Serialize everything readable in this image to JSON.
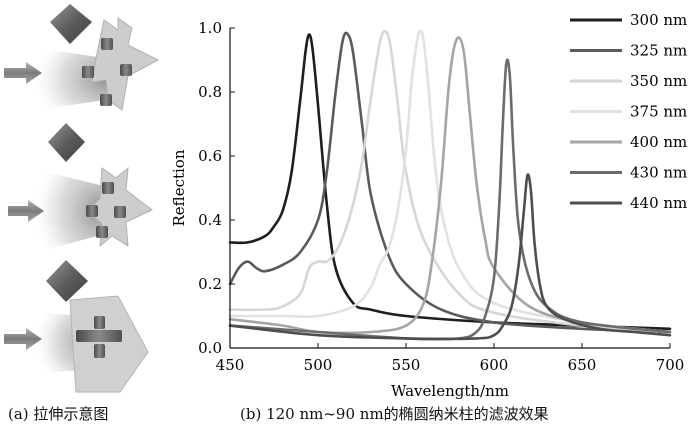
{
  "captions": {
    "a": "(a) 拉伸示意图",
    "b": "(b) 120 nm~90 nm的椭圆纳米柱的滤波效果"
  },
  "schematic": {
    "panels": [
      "top",
      "middle",
      "bottom"
    ],
    "colors": {
      "arrow": "#8a8a8a",
      "structure": "#c9c9c9",
      "pillar": "#5f5f5f",
      "diamond": "#6d6d6d",
      "beam": "#b8b8b8"
    }
  },
  "chart_data": {
    "type": "line",
    "title": "",
    "xlabel": "Wavelength/nm",
    "ylabel": "Reflection",
    "xlim": [
      450,
      700
    ],
    "ylim": [
      0,
      1.0
    ],
    "xticks": [
      450,
      500,
      550,
      600,
      650,
      700
    ],
    "yticks": [
      0.0,
      0.2,
      0.4,
      0.6,
      0.8,
      1.0
    ],
    "xtick_labels": [
      "450",
      "500",
      "550",
      "600",
      "650",
      "700"
    ],
    "ytick_labels": [
      "0.0",
      "0.2",
      "0.4",
      "0.6",
      "0.8",
      "1.0"
    ],
    "legend_position": "top-right",
    "series": [
      {
        "name": "300 nm",
        "color": "#1e1e1e",
        "x": [
          450,
          460,
          470,
          475,
          480,
          485,
          490,
          493,
          495,
          497,
          500,
          505,
          510,
          520,
          530,
          550,
          600,
          650,
          700
        ],
        "y": [
          0.33,
          0.33,
          0.35,
          0.38,
          0.43,
          0.55,
          0.78,
          0.93,
          0.98,
          0.93,
          0.76,
          0.45,
          0.25,
          0.14,
          0.12,
          0.1,
          0.08,
          0.07,
          0.06
        ]
      },
      {
        "name": "325 nm",
        "color": "#5a5a5a",
        "x": [
          450,
          455,
          460,
          465,
          470,
          480,
          490,
          500,
          505,
          510,
          514,
          517,
          520,
          525,
          530,
          540,
          550,
          570,
          600,
          650,
          700
        ],
        "y": [
          0.2,
          0.25,
          0.27,
          0.25,
          0.24,
          0.26,
          0.3,
          0.4,
          0.55,
          0.8,
          0.96,
          0.98,
          0.92,
          0.7,
          0.48,
          0.29,
          0.2,
          0.12,
          0.08,
          0.06,
          0.05
        ]
      },
      {
        "name": "350 nm",
        "color": "#d6d6d6",
        "x": [
          450,
          470,
          480,
          490,
          495,
          500,
          505,
          510,
          515,
          520,
          525,
          530,
          535,
          538,
          541,
          545,
          550,
          560,
          580,
          600,
          650,
          700
        ],
        "y": [
          0.12,
          0.12,
          0.13,
          0.17,
          0.25,
          0.27,
          0.27,
          0.3,
          0.36,
          0.45,
          0.58,
          0.78,
          0.95,
          0.99,
          0.95,
          0.78,
          0.55,
          0.34,
          0.17,
          0.11,
          0.07,
          0.05
        ]
      },
      {
        "name": "375 nm",
        "color": "#e2e2e2",
        "x": [
          450,
          480,
          500,
          520,
          530,
          535,
          540,
          545,
          550,
          553,
          556,
          558,
          560,
          563,
          566,
          570,
          580,
          600,
          650,
          700
        ],
        "y": [
          0.1,
          0.1,
          0.1,
          0.13,
          0.19,
          0.26,
          0.31,
          0.42,
          0.62,
          0.82,
          0.95,
          0.99,
          0.96,
          0.8,
          0.6,
          0.43,
          0.25,
          0.14,
          0.08,
          0.05
        ]
      },
      {
        "name": "400 nm",
        "color": "#a5a5a5",
        "x": [
          450,
          480,
          500,
          530,
          550,
          560,
          565,
          570,
          574,
          577,
          580,
          583,
          586,
          590,
          595,
          600,
          620,
          650,
          700
        ],
        "y": [
          0.09,
          0.07,
          0.05,
          0.05,
          0.07,
          0.14,
          0.28,
          0.52,
          0.8,
          0.93,
          0.97,
          0.92,
          0.75,
          0.52,
          0.34,
          0.25,
          0.13,
          0.08,
          0.05
        ]
      },
      {
        "name": "430 nm",
        "color": "#6c6c6c",
        "x": [
          450,
          500,
          550,
          580,
          590,
          595,
          600,
          603,
          605,
          607,
          609,
          611,
          614,
          620,
          630,
          650,
          700
        ],
        "y": [
          0.07,
          0.05,
          0.03,
          0.03,
          0.05,
          0.1,
          0.22,
          0.45,
          0.7,
          0.89,
          0.85,
          0.62,
          0.38,
          0.22,
          0.13,
          0.08,
          0.05
        ]
      },
      {
        "name": "440 nm",
        "color": "#4e4e4e",
        "x": [
          450,
          500,
          550,
          590,
          600,
          605,
          610,
          614,
          617,
          619,
          621,
          623,
          626,
          630,
          640,
          660,
          680,
          700
        ],
        "y": [
          0.07,
          0.04,
          0.03,
          0.03,
          0.04,
          0.07,
          0.13,
          0.26,
          0.43,
          0.54,
          0.49,
          0.33,
          0.2,
          0.13,
          0.09,
          0.06,
          0.05,
          0.04
        ]
      }
    ]
  }
}
